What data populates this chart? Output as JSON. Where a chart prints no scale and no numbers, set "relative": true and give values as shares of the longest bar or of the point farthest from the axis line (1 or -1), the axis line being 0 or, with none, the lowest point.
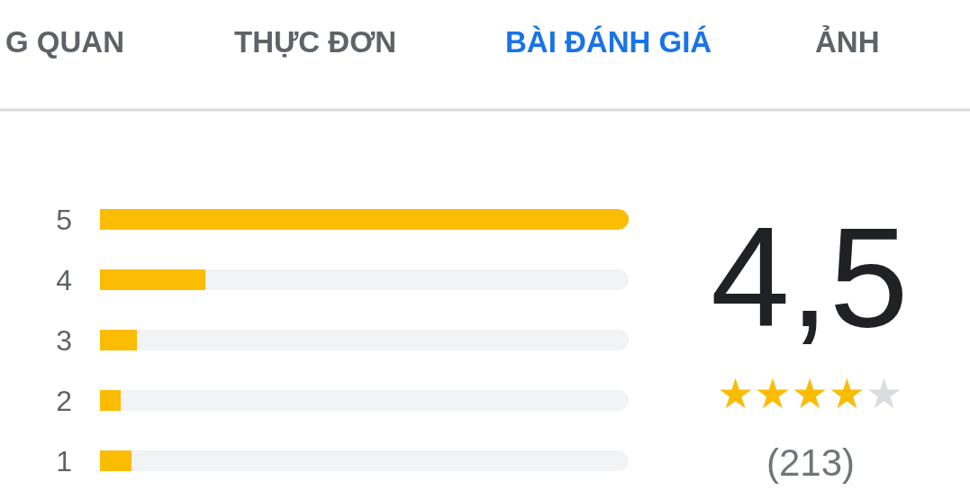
{
  "chart_data": {
    "type": "bar",
    "orientation": "horizontal",
    "relative": true,
    "stacked": true,
    "categories": [
      "5",
      "4",
      "3",
      "2",
      "1"
    ],
    "series": [
      {
        "color": "#fbbc04",
        "values": [
          1,
          0.2,
          0.07,
          0.04,
          0.06
        ]
      },
      {
        "color": "#f1f3f4",
        "values": [
          0,
          0.8,
          0.93,
          0.96,
          0.94
        ]
      }
    ],
    "annotations": [
      "G QUAN",
      "THỰC ĐƠN",
      "BÀI ĐÁNH GIÁ",
      "ẢNH",
      "4,5",
      "★★★★★",
      "(213)"
    ]
  }
}
